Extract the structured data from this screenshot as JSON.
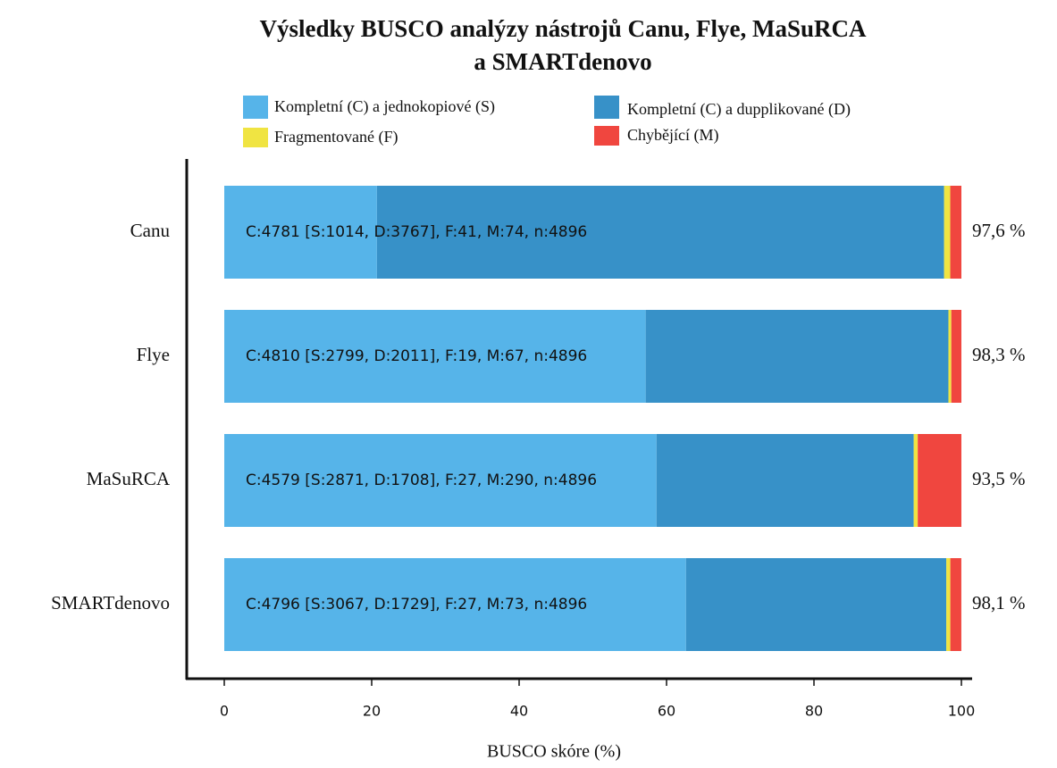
{
  "chart_data": {
    "type": "stacked-barh",
    "title": [
      "Výsledky BUSCO analýzy nástrojů Canu, Flye, MaSuRCA",
      "a SMARTdenovo"
    ],
    "xlabel": "BUSCO skóre (%)",
    "categories": [
      "Canu",
      "Flye",
      "MaSuRCA",
      "SMARTdenovo"
    ],
    "series": [
      {
        "name": "Kompletní (C) a jednokopiové (S)",
        "color": "#56b4e9",
        "values": [
          20.71,
          57.17,
          58.64,
          62.64
        ]
      },
      {
        "name": "Kompletní (C) a dupplikované (D)",
        "color": "#3791c8",
        "values": [
          76.94,
          41.07,
          34.89,
          35.31
        ]
      },
      {
        "name": "Fragmentované (F)",
        "color": "#f0e442",
        "values": [
          0.84,
          0.39,
          0.55,
          0.55
        ]
      },
      {
        "name": "Chybějící (M)",
        "color": "#f0463f",
        "values": [
          1.51,
          1.37,
          5.92,
          1.49
        ]
      }
    ],
    "bar_labels": [
      "C:4781 [S:1014, D:3767], F:41, M:74, n:4896",
      "C:4810 [S:2799, D:2011], F:19, M:67, n:4896",
      "C:4579 [S:2871, D:1708], F:27, M:290, n:4896",
      "C:4796 [S:3067, D:1729], F:27, M:73, n:4896"
    ],
    "complete_labels": [
      "97,6 %",
      "98,3 %",
      "93,5 %",
      "98,1 %"
    ],
    "xlim": [
      0,
      100
    ],
    "xticks": [
      0,
      20,
      40,
      60,
      80,
      100
    ]
  }
}
